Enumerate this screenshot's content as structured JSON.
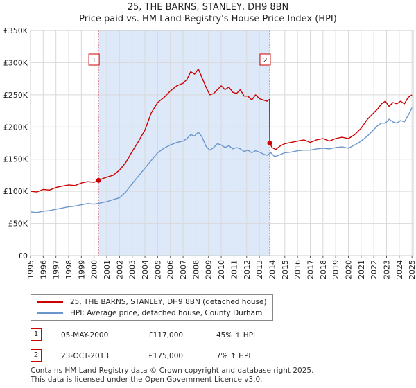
{
  "chart_data": {
    "type": "line",
    "title": "25, THE BARNS, STANLEY, DH9 8BN",
    "subtitle": "Price paid vs. HM Land Registry's House Price Index (HPI)",
    "xlabel": "",
    "ylabel": "",
    "xlim": [
      1995,
      2025.1
    ],
    "ylim": [
      0,
      350000
    ],
    "y_ticks": [
      0,
      50000,
      100000,
      150000,
      200000,
      250000,
      300000,
      350000
    ],
    "y_tick_labels": [
      "£0",
      "£50K",
      "£100K",
      "£150K",
      "£200K",
      "£250K",
      "£300K",
      "£350K"
    ],
    "x_ticks": [
      1995,
      1996,
      1997,
      1998,
      1999,
      2000,
      2001,
      2002,
      2003,
      2004,
      2005,
      2006,
      2007,
      2008,
      2009,
      2010,
      2011,
      2012,
      2013,
      2014,
      2015,
      2016,
      2017,
      2018,
      2019,
      2020,
      2021,
      2022,
      2023,
      2024,
      2025
    ],
    "x_tick_labels": [
      "1995",
      "1996",
      "1997",
      "1998",
      "1999",
      "2000",
      "2001",
      "2002",
      "2003",
      "2004",
      "2005",
      "2006",
      "2007",
      "2008",
      "2009",
      "2010",
      "2011",
      "2012",
      "2013",
      "2014",
      "2015",
      "2016",
      "2017",
      "2018",
      "2019",
      "2020",
      "2021",
      "2022",
      "2023",
      "2024",
      "2025"
    ],
    "grid": true,
    "shaded_region": {
      "from": 2000.35,
      "to": 2013.81,
      "color": "#dde8f8"
    },
    "series": [
      {
        "name": "25, THE BARNS, STANLEY, DH9 8BN (detached house)",
        "color": "#cc0000",
        "x": [
          1995.0,
          1995.5,
          1996.0,
          1996.5,
          1997.0,
          1997.5,
          1998.0,
          1998.5,
          1999.0,
          1999.5,
          2000.0,
          2000.35,
          2000.7,
          2001.0,
          2001.5,
          2002.0,
          2002.5,
          2003.0,
          2003.5,
          2004.0,
          2004.5,
          2005.0,
          2005.5,
          2006.0,
          2006.5,
          2007.0,
          2007.3,
          2007.6,
          2007.9,
          2008.2,
          2008.5,
          2008.8,
          2009.1,
          2009.4,
          2009.7,
          2010.0,
          2010.3,
          2010.6,
          2010.9,
          2011.2,
          2011.5,
          2011.8,
          2012.1,
          2012.4,
          2012.7,
          2013.0,
          2013.3,
          2013.6,
          2013.8,
          2013.81,
          2014.0,
          2014.3,
          2014.6,
          2015.0,
          2015.5,
          2016.0,
          2016.5,
          2017.0,
          2017.5,
          2018.0,
          2018.5,
          2019.0,
          2019.5,
          2020.0,
          2020.5,
          2021.0,
          2021.5,
          2022.0,
          2022.3,
          2022.6,
          2022.9,
          2023.2,
          2023.5,
          2023.8,
          2024.1,
          2024.4,
          2024.7,
          2025.0
        ],
        "values": [
          100000,
          99000,
          103000,
          102000,
          106000,
          108000,
          110000,
          109000,
          113000,
          115000,
          114000,
          117000,
          120000,
          122000,
          125000,
          133000,
          145000,
          162000,
          178000,
          195000,
          222000,
          238000,
          246000,
          256000,
          264000,
          268000,
          274000,
          286000,
          282000,
          290000,
          276000,
          262000,
          250000,
          252000,
          258000,
          264000,
          258000,
          262000,
          254000,
          252000,
          258000,
          248000,
          248000,
          242000,
          250000,
          244000,
          242000,
          240000,
          243000,
          175000,
          168000,
          165000,
          170000,
          174000,
          176000,
          178000,
          180000,
          176000,
          180000,
          182000,
          178000,
          182000,
          184000,
          182000,
          188000,
          198000,
          212000,
          222000,
          228000,
          236000,
          240000,
          232000,
          238000,
          236000,
          240000,
          236000,
          246000,
          250000
        ]
      },
      {
        "name": "HPI: Average price, detached house, County Durham",
        "color": "#6a96cc",
        "x": [
          1995.0,
          1995.5,
          1996.0,
          1996.5,
          1997.0,
          1997.5,
          1998.0,
          1998.5,
          1999.0,
          1999.5,
          2000.0,
          2000.5,
          2001.0,
          2001.5,
          2002.0,
          2002.5,
          2003.0,
          2003.5,
          2004.0,
          2004.5,
          2005.0,
          2005.5,
          2006.0,
          2006.5,
          2007.0,
          2007.3,
          2007.6,
          2007.9,
          2008.2,
          2008.5,
          2008.8,
          2009.1,
          2009.4,
          2009.7,
          2010.0,
          2010.3,
          2010.6,
          2010.9,
          2011.2,
          2011.5,
          2011.8,
          2012.1,
          2012.4,
          2012.7,
          2013.0,
          2013.3,
          2013.6,
          2013.9,
          2014.2,
          2014.5,
          2015.0,
          2015.5,
          2016.0,
          2016.5,
          2017.0,
          2017.5,
          2018.0,
          2018.5,
          2019.0,
          2019.5,
          2020.0,
          2020.5,
          2021.0,
          2021.5,
          2022.0,
          2022.3,
          2022.6,
          2022.9,
          2023.2,
          2023.5,
          2023.8,
          2024.1,
          2024.4,
          2024.7,
          2025.0
        ],
        "values": [
          68000,
          67000,
          69000,
          70000,
          72000,
          74000,
          76000,
          77000,
          79000,
          81000,
          80000,
          82000,
          84000,
          87000,
          90000,
          99000,
          112000,
          124000,
          136000,
          148000,
          160000,
          167000,
          172000,
          176000,
          178000,
          182000,
          188000,
          186000,
          192000,
          184000,
          170000,
          164000,
          168000,
          174000,
          172000,
          168000,
          171000,
          166000,
          168000,
          166000,
          162000,
          164000,
          160000,
          163000,
          161000,
          158000,
          156000,
          160000,
          154000,
          156000,
          160000,
          161000,
          163000,
          164000,
          164000,
          166000,
          167000,
          166000,
          168000,
          169000,
          167000,
          172000,
          178000,
          186000,
          196000,
          202000,
          206000,
          206000,
          212000,
          208000,
          206000,
          210000,
          208000,
          218000,
          230000
        ]
      }
    ],
    "markers": [
      {
        "label": "1",
        "x": 2000.35,
        "y": 117000
      },
      {
        "label": "2",
        "x": 2013.81,
        "y": 175000
      }
    ]
  },
  "legend": {
    "items": [
      {
        "label": "25, THE BARNS, STANLEY, DH9 8BN (detached house)",
        "color": "#cc0000"
      },
      {
        "label": "HPI: Average price, detached house, County Durham",
        "color": "#6a96cc"
      }
    ]
  },
  "sales": [
    {
      "num": "1",
      "date": "05-MAY-2000",
      "price": "£117,000",
      "hpi": "45% ↑ HPI"
    },
    {
      "num": "2",
      "date": "23-OCT-2013",
      "price": "£175,000",
      "hpi": "7% ↑ HPI"
    }
  ],
  "footer": {
    "line1": "Contains HM Land Registry data © Crown copyright and database right 2025.",
    "line2": "This data is licensed under the Open Government Licence v3.0."
  }
}
